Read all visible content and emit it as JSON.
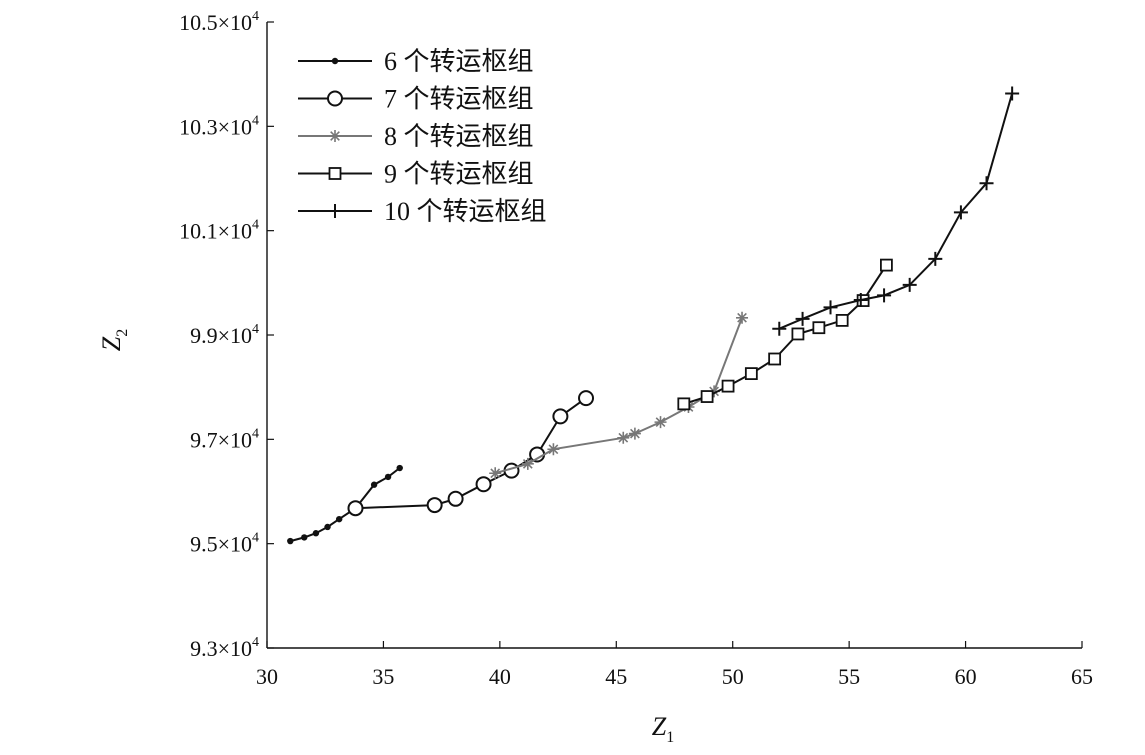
{
  "chart_data": {
    "type": "line",
    "xlabel": "Z",
    "xlabel_sub": "1",
    "ylabel": "Z",
    "ylabel_sub": "2",
    "xlim": [
      30,
      65
    ],
    "ylim": [
      93000,
      105000
    ],
    "xticks": [
      30,
      35,
      40,
      45,
      50,
      55,
      60,
      65
    ],
    "xtick_labels": [
      "30",
      "35",
      "40",
      "45",
      "50",
      "55",
      "60",
      "65"
    ],
    "yticks": [
      93000,
      95000,
      97000,
      99000,
      101000,
      103000,
      105000
    ],
    "ytick_mantissas": [
      "9.3×10",
      "9.5×10",
      "9.7×10",
      "9.9×10",
      "10.1×10",
      "10.3×10",
      "10.5×10"
    ],
    "ytick_exponent": "4",
    "grid": false,
    "legend_position": "top-left",
    "series": [
      {
        "name": "6 个转运枢组",
        "marker": "dot",
        "color": "#111111",
        "x": [
          31.0,
          31.6,
          32.1,
          32.6,
          33.1,
          33.8,
          34.6,
          35.2,
          35.7
        ],
        "y": [
          95050,
          95120,
          95200,
          95320,
          95470,
          95680,
          96130,
          96280,
          96450
        ]
      },
      {
        "name": "7 个转运枢组",
        "marker": "circle",
        "color": "#111111",
        "x": [
          33.8,
          37.2,
          38.1,
          39.3,
          40.5,
          41.6,
          42.6,
          43.7
        ],
        "y": [
          95680,
          95740,
          95860,
          96140,
          96400,
          96710,
          97440,
          97790
        ]
      },
      {
        "name": "8 个转运枢组",
        "marker": "star",
        "color": "#777777",
        "x": [
          39.8,
          41.2,
          42.3,
          45.3,
          45.8,
          46.9,
          48.1,
          49.2,
          50.4
        ],
        "y": [
          96350,
          96530,
          96810,
          97030,
          97110,
          97330,
          97620,
          97920,
          99330
        ]
      },
      {
        "name": "9 个转运枢组",
        "marker": "square",
        "color": "#111111",
        "x": [
          47.9,
          48.9,
          49.8,
          50.8,
          51.8,
          52.8,
          53.7,
          54.7,
          55.6,
          56.6
        ],
        "y": [
          97680,
          97820,
          98020,
          98260,
          98540,
          99020,
          99140,
          99280,
          99660,
          100340
        ]
      },
      {
        "name": "10 个转运枢组",
        "marker": "plus",
        "color": "#111111",
        "x": [
          52.0,
          53.0,
          54.2,
          55.5,
          56.5,
          57.6,
          58.7,
          59.8,
          60.9,
          62.0
        ],
        "y": [
          99120,
          99310,
          99530,
          99670,
          99760,
          99960,
          100460,
          101350,
          101910,
          103630
        ]
      }
    ]
  }
}
